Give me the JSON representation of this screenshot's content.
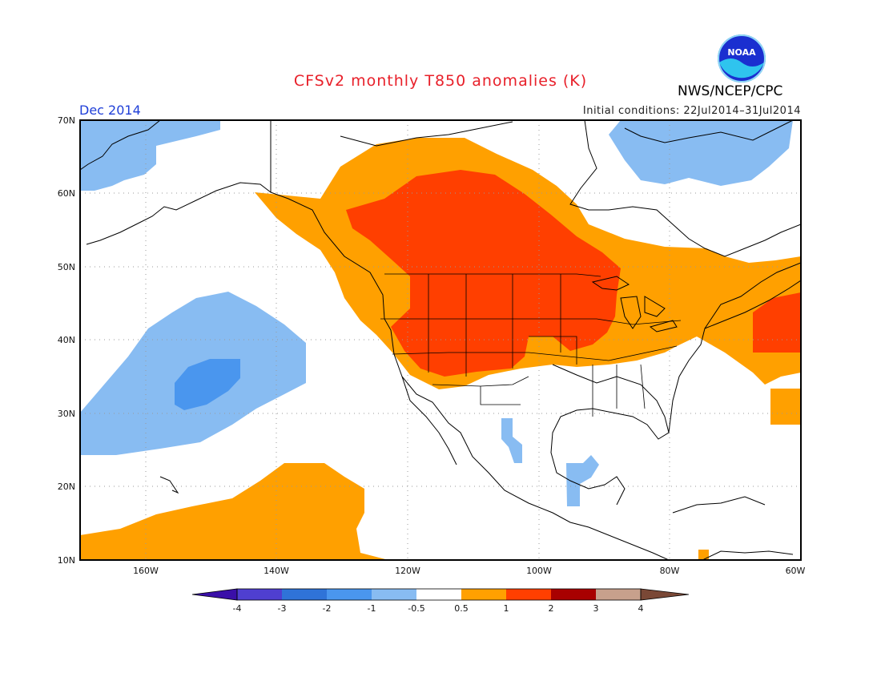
{
  "header": {
    "title": "CFSv2 monthly T850 anomalies (K)",
    "month": "Dec 2014",
    "initial_conditions": "Initial conditions: 22Jul2014–31Jul2014",
    "agency": "NWS/NCEP/CPC",
    "logo_text": "NOAA"
  },
  "axes": {
    "lat_labels": [
      "70N",
      "60N",
      "50N",
      "40N",
      "30N",
      "20N",
      "10N"
    ],
    "lat_values": [
      70,
      60,
      50,
      40,
      30,
      20,
      10
    ],
    "lon_labels": [
      "160W",
      "140W",
      "120W",
      "100W",
      "80W",
      "60W"
    ],
    "lon_values": [
      -160,
      -140,
      -120,
      -100,
      -80,
      -60
    ],
    "extent": {
      "lon_min": -170,
      "lon_max": -60,
      "lat_min": 10,
      "lat_max": 70
    },
    "grid": "dotted"
  },
  "colorbar": {
    "labels": [
      "-4",
      "-3",
      "-2",
      "-1",
      "-0.5",
      "0.5",
      "1",
      "2",
      "3",
      "4"
    ],
    "colors": [
      "#3a0fa8",
      "#4f3fd0",
      "#2f73d8",
      "#4a96ee",
      "#88bcf2",
      "#ffffff",
      "#ffa000",
      "#ff3f00",
      "#a80000",
      "#c7a08c",
      "#7a4836"
    ]
  },
  "anomaly_regions": [
    {
      "level": "0.5 to 1",
      "color": "#ffa000",
      "description": "Western Canada, Pacific Northwest, northern Plains and Northeast; subtropical Pacific south of Hawaii"
    },
    {
      "level": "1 to 2",
      "color": "#ff3f00",
      "description": "Western and central Canada, northern Rockies and Plains; off Nova Scotia"
    },
    {
      "level": "-1 to -0.5",
      "color": "#88bcf2",
      "description": "Northeast Pacific near Hawaii, Bering Sea, Greenland; small patches in Mexico"
    },
    {
      "level": "-2 to -1",
      "color": "#4a96ee",
      "description": "Central North Pacific near 35N 150W"
    }
  ]
}
